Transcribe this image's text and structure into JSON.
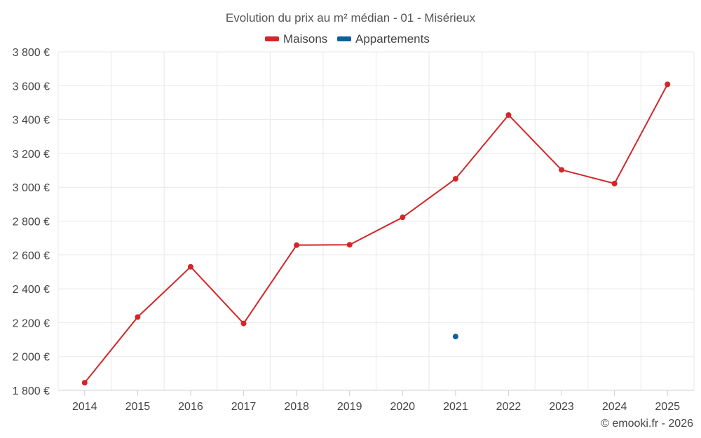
{
  "chart_data": {
    "type": "line",
    "title": "Evolution du prix au m² médian - 01 - Misérieux",
    "categories": [
      "2014",
      "2015",
      "2016",
      "2017",
      "2018",
      "2019",
      "2020",
      "2021",
      "2022",
      "2023",
      "2024",
      "2025"
    ],
    "series": [
      {
        "name": "Maisons",
        "color": "#d32629",
        "values": [
          1845,
          2233,
          2530,
          2195,
          2658,
          2660,
          2822,
          3050,
          3427,
          3103,
          3022,
          3608
        ]
      },
      {
        "name": "Appartements",
        "color": "#0e609a",
        "values": [
          null,
          null,
          null,
          null,
          null,
          null,
          null,
          2118,
          null,
          null,
          null,
          null
        ]
      }
    ],
    "ylim": [
      1800,
      3800
    ],
    "yticks": [
      1800,
      2000,
      2200,
      2400,
      2600,
      2800,
      3000,
      3200,
      3400,
      3600,
      3800
    ],
    "ytick_labels": [
      "1 800 €",
      "2 000 €",
      "2 200 €",
      "2 400 €",
      "2 600 €",
      "2 800 €",
      "3 000 €",
      "3 200 €",
      "3 400 €",
      "3 600 €",
      "3 800 €"
    ],
    "xlabel": "",
    "ylabel": "",
    "grid": true,
    "legend_position": "top-center"
  },
  "credit": "© emooki.fr - 2026"
}
